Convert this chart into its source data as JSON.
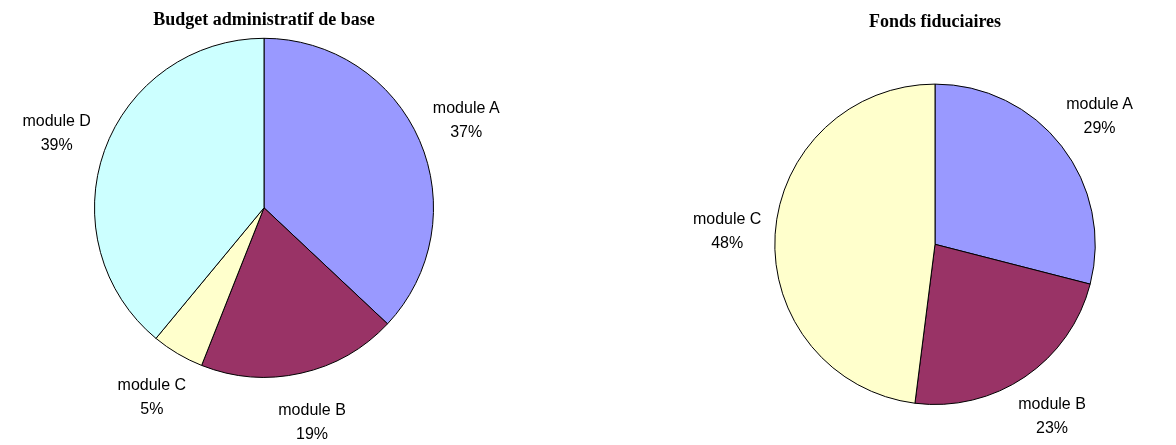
{
  "chart_data": [
    {
      "type": "pie",
      "title": "Budget administratif de base",
      "categories": [
        "module A",
        "module B",
        "module C",
        "module D"
      ],
      "values": [
        37,
        19,
        5,
        39
      ],
      "value_labels": [
        "37%",
        "19%",
        "5%",
        "39%"
      ],
      "colors": [
        "#9999ff",
        "#993366",
        "#ffffcc",
        "#ccffff"
      ],
      "legend": false
    },
    {
      "type": "pie",
      "title": "Fonds fiduciaires",
      "categories": [
        "module A",
        "module B",
        "module C"
      ],
      "values": [
        29,
        23,
        48
      ],
      "value_labels": [
        "29%",
        "23%",
        "48%"
      ],
      "colors": [
        "#9999ff",
        "#993366",
        "#ffffcc"
      ],
      "legend": false
    }
  ]
}
